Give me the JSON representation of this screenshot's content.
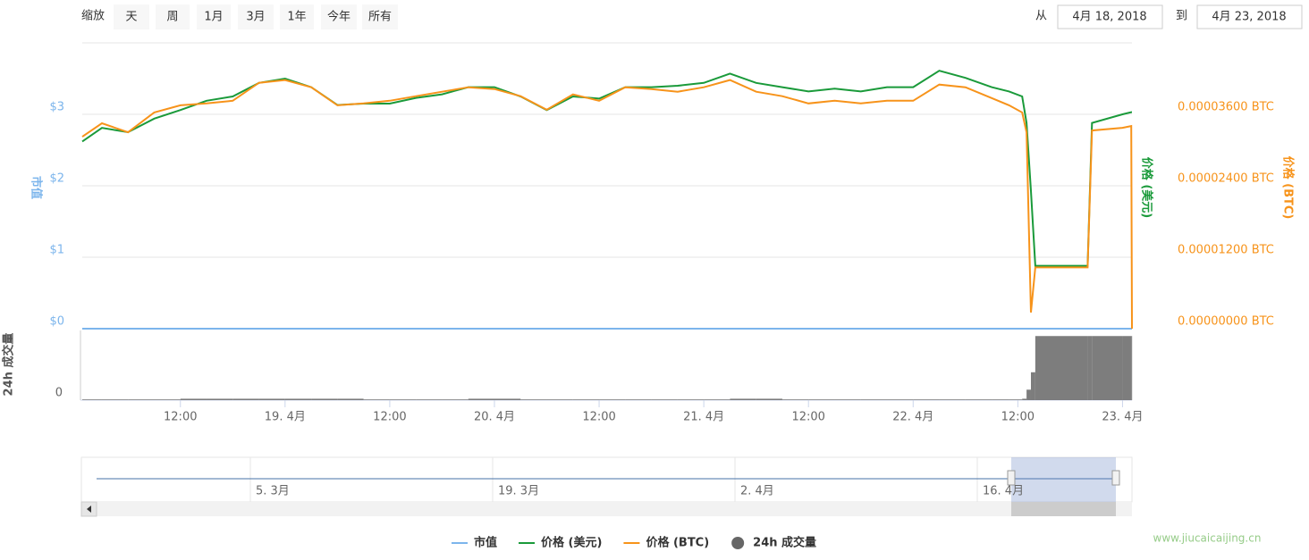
{
  "toolbar": {
    "zoom_label": "缩放",
    "buttons": [
      "天",
      "周",
      "1月",
      "3月",
      "1年",
      "今年",
      "所有"
    ],
    "from_label": "从",
    "from": "4月 18, 2018",
    "to_label": "到",
    "to": "4月 23, 2018"
  },
  "chart_data": {
    "type": "line",
    "x": [
      "2018-04-18 00:45",
      "2018-04-18 03:00",
      "2018-04-18 06:00",
      "2018-04-18 09:00",
      "2018-04-18 12:00",
      "2018-04-18 15:00",
      "2018-04-18 18:00",
      "2018-04-18 21:00",
      "2018-04-19 00:00",
      "2018-04-19 03:00",
      "2018-04-19 06:00",
      "2018-04-19 09:00",
      "2018-04-19 12:00",
      "2018-04-19 15:00",
      "2018-04-19 18:00",
      "2018-04-19 21:00",
      "2018-04-20 00:00",
      "2018-04-20 03:00",
      "2018-04-20 06:00",
      "2018-04-20 09:00",
      "2018-04-20 12:00",
      "2018-04-20 15:00",
      "2018-04-20 18:00",
      "2018-04-20 21:00",
      "2018-04-21 00:00",
      "2018-04-21 03:00",
      "2018-04-21 06:00",
      "2018-04-21 09:00",
      "2018-04-21 12:00",
      "2018-04-21 15:00",
      "2018-04-21 18:00",
      "2018-04-21 21:00",
      "2018-04-22 00:00",
      "2018-04-22 03:00",
      "2018-04-22 06:00",
      "2018-04-22 09:00",
      "2018-04-22 11:00",
      "2018-04-22 12:30",
      "2018-04-22 13:00",
      "2018-04-22 13:30",
      "2018-04-22 14:00",
      "2018-04-22 20:00",
      "2018-04-22 20:30",
      "2018-04-23 00:00",
      "2018-04-23 01:00",
      "2018-04-23 01:05"
    ],
    "series": [
      {
        "name": "市值",
        "color": "#7cb5ec",
        "axis": "y",
        "values": [
          0,
          0,
          0,
          0,
          0,
          0,
          0,
          0,
          0,
          0,
          0,
          0,
          0,
          0,
          0,
          0,
          0,
          0,
          0,
          0,
          0,
          0,
          0,
          0,
          0,
          0,
          0,
          0,
          0,
          0,
          0,
          0,
          0,
          0,
          0,
          0,
          0,
          0,
          0,
          0,
          0,
          0,
          0,
          0,
          0,
          0
        ]
      },
      {
        "name": "价格 (美元)",
        "color": "#1a9a3a",
        "axis": "y",
        "values": [
          2.62,
          2.81,
          2.75,
          2.94,
          3.06,
          3.19,
          3.25,
          3.44,
          3.5,
          3.38,
          3.13,
          3.15,
          3.15,
          3.23,
          3.28,
          3.38,
          3.38,
          3.25,
          3.06,
          3.25,
          3.22,
          3.38,
          3.38,
          3.4,
          3.44,
          3.57,
          3.44,
          3.38,
          3.32,
          3.36,
          3.32,
          3.38,
          3.38,
          3.61,
          3.51,
          3.38,
          3.32,
          3.25,
          2.88,
          1.93,
          0.88,
          0.88,
          2.88,
          3.0,
          3.03,
          3.03
        ]
      },
      {
        "name": "价格 (BTC)",
        "color": "#f7931a",
        "axis": "y2",
        "values": [
          3.223e-05,
          3.45e-05,
          3.298e-05,
          3.631e-05,
          3.752e-05,
          3.783e-05,
          3.828e-05,
          4.13e-05,
          4.176e-05,
          4.055e-05,
          3.752e-05,
          3.783e-05,
          3.828e-05,
          3.904e-05,
          3.979e-05,
          4.055e-05,
          4.025e-05,
          3.904e-05,
          3.677e-05,
          3.934e-05,
          3.828e-05,
          4.055e-05,
          4.025e-05,
          3.979e-05,
          4.055e-05,
          4.176e-05,
          3.979e-05,
          3.904e-05,
          3.783e-05,
          3.828e-05,
          3.783e-05,
          3.828e-05,
          3.828e-05,
          4.1e-05,
          4.055e-05,
          3.873e-05,
          3.752e-05,
          3.631e-05,
          3.298e-05,
          2.72e-06,
          1.029e-05,
          1.029e-05,
          3.329e-05,
          3.374e-05,
          3.404e-05,
          0
        ]
      },
      {
        "name": "24h 成交量",
        "color": "#666666",
        "axis": "volume",
        "values": [
          1,
          1,
          1,
          1,
          2,
          2,
          2,
          2,
          2,
          2,
          2,
          1,
          1,
          1,
          1,
          2,
          2,
          1,
          1,
          1,
          1,
          1,
          1,
          1,
          1,
          2,
          2,
          1,
          1,
          1,
          1,
          1,
          1,
          1,
          1,
          1,
          1,
          2,
          15,
          40,
          92,
          92,
          92,
          92,
          92,
          92
        ]
      }
    ],
    "xlim": [
      "2018-04-18 00:45",
      "2018-04-23 01:05"
    ],
    "xticks": [
      {
        "value": "2018-04-18 12:00",
        "label": "12:00"
      },
      {
        "value": "2018-04-19 00:00",
        "label": "19. 4月"
      },
      {
        "value": "2018-04-19 12:00",
        "label": "12:00"
      },
      {
        "value": "2018-04-20 00:00",
        "label": "20. 4月"
      },
      {
        "value": "2018-04-20 12:00",
        "label": "12:00"
      },
      {
        "value": "2018-04-21 00:00",
        "label": "21. 4月"
      },
      {
        "value": "2018-04-21 12:00",
        "label": "12:00"
      },
      {
        "value": "2018-04-22 00:00",
        "label": "22. 4月"
      },
      {
        "value": "2018-04-22 12:00",
        "label": "12:00"
      },
      {
        "value": "2018-04-23 00:00",
        "label": "23. 4月"
      }
    ],
    "ylim": [
      0,
      4
    ],
    "yticks": [
      {
        "value": 0,
        "label": "$0"
      },
      {
        "value": 1,
        "label": "$1"
      },
      {
        "value": 2,
        "label": "$2"
      },
      {
        "value": 3,
        "label": "$3"
      }
    ],
    "y2lim": [
      0,
      4.8e-05
    ],
    "y2ticks": [
      {
        "value": 0,
        "label": "0.00000000 BTC"
      },
      {
        "value": 1.2e-05,
        "label": "0.00001200 BTC"
      },
      {
        "value": 2.4e-05,
        "label": "0.00002400 BTC"
      },
      {
        "value": 3.6e-05,
        "label": "0.00003600 BTC"
      }
    ],
    "volume_ylim": [
      0,
      100
    ],
    "volume_yticks": [
      0
    ],
    "ylabel": "市值",
    "y2label_usd": "价格 (美元)",
    "y2label_btc": "价格 (BTC)",
    "volume_label": "24h 成交量",
    "grid": true
  },
  "navigator": {
    "labels": [
      "5. 3月",
      "19. 3月",
      "2. 4月",
      "16. 4月"
    ]
  },
  "watermark": "www.jiucaicaijing.cn"
}
